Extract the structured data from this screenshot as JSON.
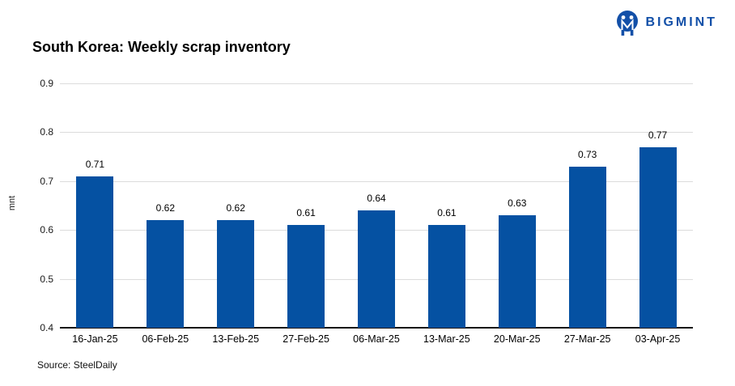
{
  "logo": {
    "brand": "BIGMINT",
    "icon": "bigmint-globe-icon",
    "color": "#1350a8"
  },
  "title": "South Korea: Weekly scrap inventory",
  "source": "Source: SteelDaily",
  "chart_data": {
    "type": "bar",
    "title": "South Korea: Weekly scrap inventory",
    "categories": [
      "16-Jan-25",
      "06-Feb-25",
      "13-Feb-25",
      "27-Feb-25",
      "06-Mar-25",
      "13-Mar-25",
      "20-Mar-25",
      "27-Mar-25",
      "03-Apr-25"
    ],
    "values": [
      0.71,
      0.62,
      0.62,
      0.61,
      0.64,
      0.61,
      0.63,
      0.73,
      0.77
    ],
    "xlabel": "",
    "ylabel": "mnt",
    "ylim": [
      0.4,
      0.9
    ],
    "yticks": [
      0.4,
      0.5,
      0.6,
      0.7,
      0.8,
      0.9
    ],
    "grid": true,
    "legend": "none",
    "data_labels": true,
    "bar_color": "#0551a2",
    "gridline_color": "#dcdcdc"
  }
}
